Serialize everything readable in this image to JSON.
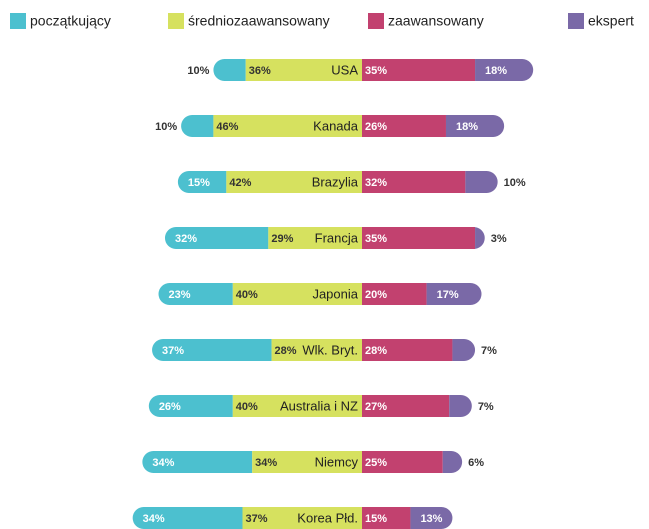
{
  "chart_data": {
    "type": "diverging-bar",
    "categories": [
      "USA",
      "Kanada",
      "Brazylia",
      "Francja",
      "Japonia",
      "Wlk. Bryt.",
      "Australia i NZ",
      "Niemcy",
      "Korea Płd."
    ],
    "series": [
      {
        "name": "początkujący",
        "color": "#4cc0cf",
        "side": "left",
        "values": [
          10,
          10,
          15,
          32,
          23,
          37,
          26,
          34,
          34
        ],
        "value_labels": [
          "10%",
          "10%",
          "15%",
          "32%",
          "23%",
          "37%",
          "26%",
          "34%",
          "34%"
        ]
      },
      {
        "name": "średniozaawansowany",
        "color": "#d6e15f",
        "side": "left",
        "values": [
          36,
          46,
          42,
          29,
          40,
          28,
          40,
          34,
          37
        ],
        "value_labels": [
          "36%",
          "46%",
          "42%",
          "29%",
          "40%",
          "28%",
          "40%",
          "34%",
          "37%"
        ]
      },
      {
        "name": "zaawansowany",
        "color": "#c2416f",
        "side": "right",
        "values": [
          35,
          26,
          32,
          35,
          20,
          28,
          27,
          25,
          15
        ],
        "value_labels": [
          "35%",
          "26%",
          "32%",
          "35%",
          "20%",
          "28%",
          "27%",
          "25%",
          "15%"
        ]
      },
      {
        "name": "ekspert",
        "color": "#7a69a7",
        "side": "right",
        "values": [
          18,
          18,
          10,
          3,
          17,
          7,
          7,
          6,
          13
        ],
        "value_labels": [
          "18%",
          "18%",
          "10%",
          "3%",
          "17%",
          "7%",
          "7%",
          "6%",
          "13%"
        ]
      }
    ]
  }
}
